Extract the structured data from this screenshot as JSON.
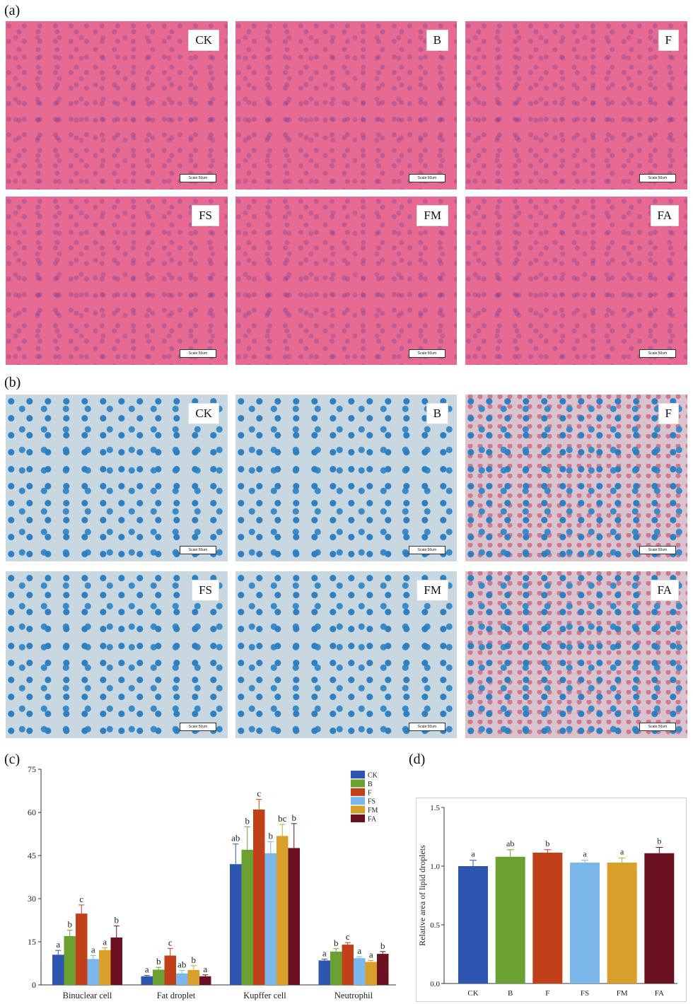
{
  "panel_labels": {
    "a": "(a)",
    "b": "(b)",
    "c": "(c)",
    "d": "(d)"
  },
  "micrographs": {
    "he": [
      "CK",
      "B",
      "F",
      "FS",
      "FM",
      "FA"
    ],
    "oro": [
      "CK",
      "B",
      "F",
      "FS",
      "FM",
      "FA"
    ],
    "scale_label": "Scale:50um"
  },
  "colors": {
    "CK": "#2e56b0",
    "B": "#6aa130",
    "F": "#c0401a",
    "FS": "#7bb7ea",
    "FM": "#d8a02a",
    "FA": "#6b1020"
  },
  "chart_data": [
    {
      "type": "bar",
      "categories": [
        "Binuclear cell",
        "Fat droplet",
        "Kupffer cell",
        "Neutrophil"
      ],
      "series": [
        {
          "name": "CK",
          "values": [
            10.5,
            3,
            42,
            8.5
          ],
          "errors": [
            1.5,
            0.3,
            7,
            0.5
          ],
          "letters": [
            "a",
            "a",
            "ab",
            "a"
          ]
        },
        {
          "name": "B",
          "values": [
            17,
            5.3,
            47,
            11.6
          ],
          "errors": [
            2,
            0.8,
            8,
            1
          ],
          "letters": [
            "b",
            "b",
            "b",
            "b"
          ]
        },
        {
          "name": "F",
          "values": [
            24.8,
            10.2,
            61,
            14
          ],
          "errors": [
            3,
            2.5,
            3.5,
            0.7
          ],
          "letters": [
            "c",
            "c",
            "c",
            "c"
          ]
        },
        {
          "name": "FS",
          "values": [
            9,
            4,
            45.8,
            9.3
          ],
          "errors": [
            1.2,
            1,
            4,
            0.5
          ],
          "letters": [
            "a",
            "ab",
            "b",
            "a"
          ]
        },
        {
          "name": "FM",
          "values": [
            12.1,
            5.2,
            51.8,
            8
          ],
          "errors": [
            0.8,
            1.5,
            4,
            0.5
          ],
          "letters": [
            "a",
            "b",
            "bc",
            "a"
          ]
        },
        {
          "name": "FA",
          "values": [
            16.5,
            3,
            47.6,
            10.8
          ],
          "errors": [
            4,
            0.5,
            8.5,
            0.8
          ],
          "letters": [
            "b",
            "a",
            "b",
            "b"
          ]
        }
      ],
      "ylim": [
        0,
        75
      ],
      "yticks": [
        0,
        15,
        30,
        45,
        60,
        75
      ],
      "legend": "top-right"
    },
    {
      "type": "bar",
      "categories": [
        "CK",
        "B",
        "F",
        "FS",
        "FM",
        "FA"
      ],
      "values": [
        1.0,
        1.08,
        1.115,
        1.03,
        1.03,
        1.11
      ],
      "errors": [
        0.05,
        0.06,
        0.025,
        0.02,
        0.04,
        0.05
      ],
      "letters": [
        "a",
        "ab",
        "b",
        "a",
        "a",
        "b"
      ],
      "ylabel": "Relative area of lipid droplets",
      "ylim": [
        0,
        1.5
      ],
      "yticks": [
        "0.0",
        "0.5",
        "1.0",
        "1.5"
      ]
    }
  ]
}
